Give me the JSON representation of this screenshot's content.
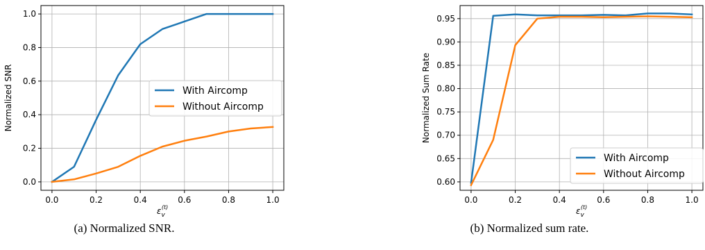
{
  "chart_data": [
    {
      "type": "line",
      "caption": "(a) Normalized SNR.",
      "xlabel_base": "ε",
      "xlabel_sub": "v",
      "xlabel_sup": "(t)",
      "ylabel": "Normalized SNR",
      "xlim": [
        -0.05,
        1.05
      ],
      "ylim": [
        -0.05,
        1.05
      ],
      "xticks": [
        0.0,
        0.2,
        0.4,
        0.6,
        0.8,
        1.0
      ],
      "xtick_labels": [
        "0.0",
        "0.2",
        "0.4",
        "0.6",
        "0.8",
        "1.0"
      ],
      "yticks": [
        0.0,
        0.2,
        0.4,
        0.6,
        0.8,
        1.0
      ],
      "ytick_labels": [
        "0.0",
        "0.2",
        "0.4",
        "0.6",
        "0.8",
        "1.0"
      ],
      "grid": true,
      "legend_position": "center-right",
      "x": [
        0.0,
        0.1,
        0.2,
        0.3,
        0.4,
        0.5,
        0.6,
        0.7,
        0.8,
        0.9,
        1.0
      ],
      "series": [
        {
          "name": "With Aircomp",
          "color": "#1f77b4",
          "values": [
            0.0,
            0.09,
            0.37,
            0.635,
            0.82,
            0.91,
            0.955,
            1.0,
            1.0,
            1.0,
            1.0
          ]
        },
        {
          "name": "Without Aircomp",
          "color": "#ff7f0e",
          "values": [
            0.0,
            0.015,
            0.05,
            0.09,
            0.155,
            0.21,
            0.245,
            0.27,
            0.3,
            0.318,
            0.327
          ]
        }
      ]
    },
    {
      "type": "line",
      "caption": "(b) Normalized sum rate.",
      "xlabel_base": "ε",
      "xlabel_sub": "v",
      "xlabel_sup": "(t)",
      "ylabel": "Normalized Sum Rate",
      "xlim": [
        -0.05,
        1.05
      ],
      "ylim": [
        0.582,
        0.978
      ],
      "xticks": [
        0.0,
        0.2,
        0.4,
        0.6,
        0.8,
        1.0
      ],
      "xtick_labels": [
        "0.0",
        "0.2",
        "0.4",
        "0.6",
        "0.8",
        "1.0"
      ],
      "yticks": [
        0.6,
        0.65,
        0.7,
        0.75,
        0.8,
        0.85,
        0.9,
        0.95
      ],
      "ytick_labels": [
        "0.60",
        "0.65",
        "0.70",
        "0.75",
        "0.80",
        "0.85",
        "0.90",
        "0.95"
      ],
      "grid": true,
      "legend_position": "lower-right",
      "x": [
        0.0,
        0.1,
        0.2,
        0.3,
        0.4,
        0.5,
        0.6,
        0.7,
        0.8,
        0.9,
        1.0
      ],
      "series": [
        {
          "name": "With Aircomp",
          "color": "#1f77b4",
          "values": [
            0.598,
            0.956,
            0.959,
            0.957,
            0.957,
            0.957,
            0.958,
            0.957,
            0.961,
            0.961,
            0.959
          ]
        },
        {
          "name": "Without Aircomp",
          "color": "#ff7f0e",
          "values": [
            0.593,
            0.69,
            0.893,
            0.95,
            0.954,
            0.954,
            0.953,
            0.954,
            0.955,
            0.954,
            0.953
          ]
        }
      ]
    }
  ]
}
